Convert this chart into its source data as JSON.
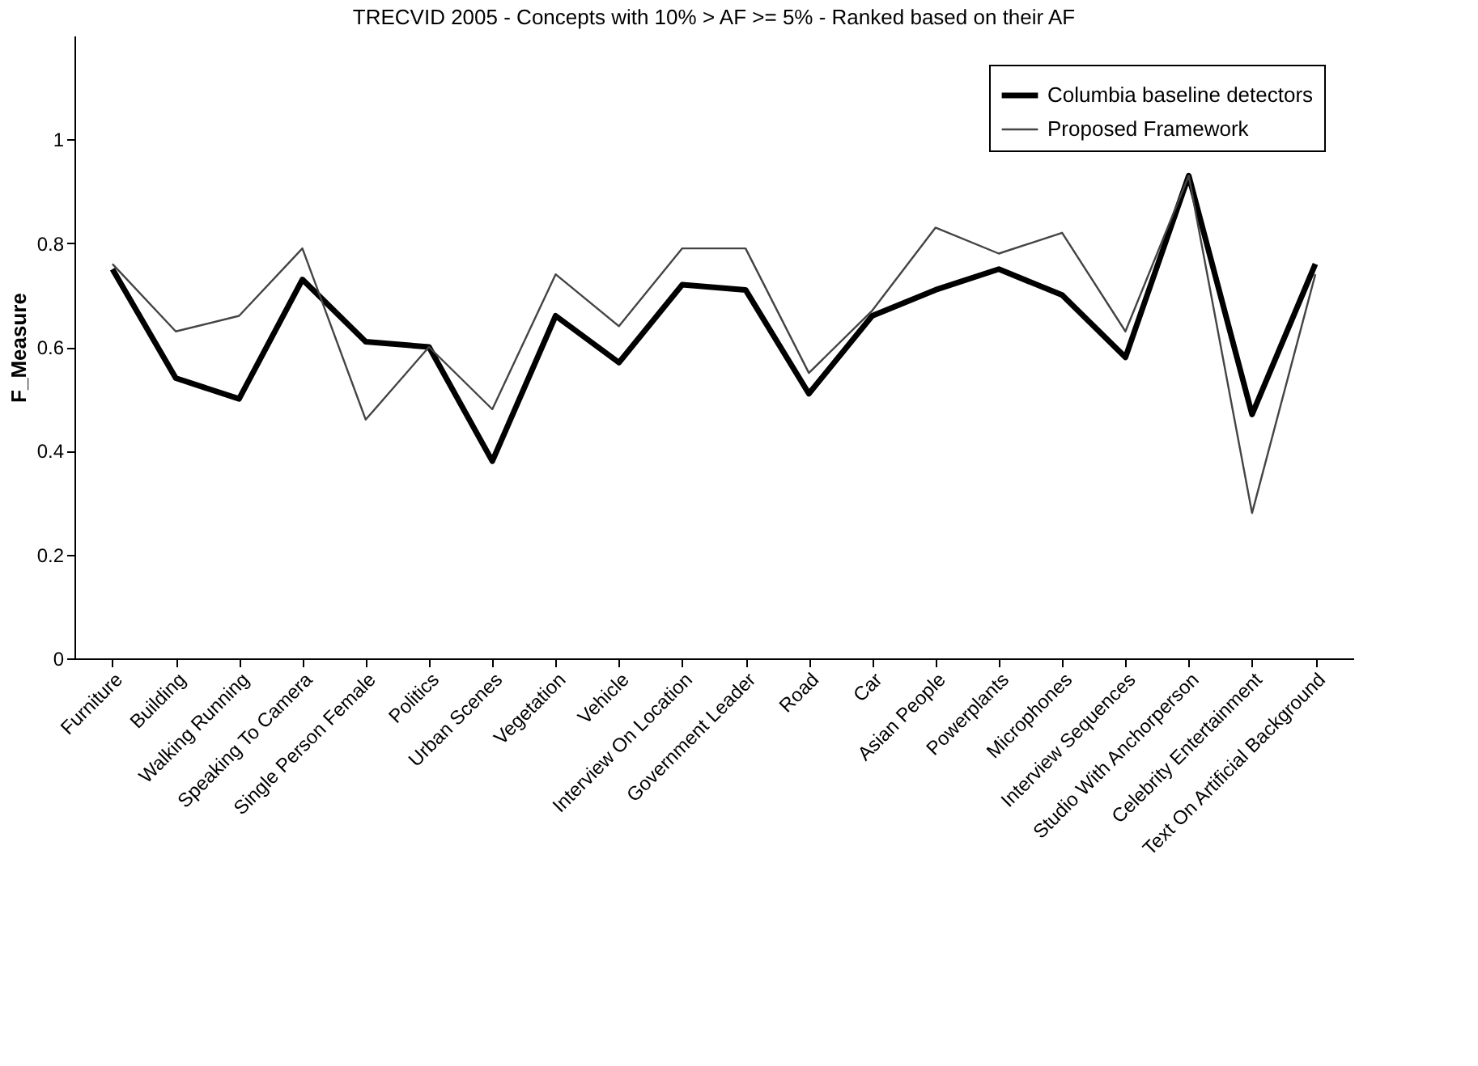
{
  "chart_data": {
    "type": "line",
    "title": "TRECVID 2005 - Concepts with 10% > AF >= 5% - Ranked based on their AF",
    "ylabel": "F_Measure",
    "categories": [
      "Furniture",
      "Building",
      "Walking Running",
      "Speaking To Camera",
      "Single Person Female",
      "Politics",
      "Urban Scenes",
      "Vegetation",
      "Vehicle",
      "Interview On Location",
      "Government Leader",
      "Road",
      "Car",
      "Asian People",
      "Powerplants",
      "Microphones",
      "Interview Sequences",
      "Studio With Anchorperson",
      "Celebrity Entertainment",
      "Text On Artificial Background"
    ],
    "series": [
      {
        "name": "Columbia baseline detectors",
        "color": "#000000",
        "values": [
          0.75,
          0.54,
          0.5,
          0.73,
          0.61,
          0.6,
          0.38,
          0.66,
          0.57,
          0.72,
          0.71,
          0.51,
          0.66,
          0.71,
          0.75,
          0.7,
          0.58,
          0.93,
          0.47,
          0.76
        ]
      },
      {
        "name": "Proposed Framework",
        "color": "#444444",
        "values": [
          0.76,
          0.63,
          0.66,
          0.79,
          0.46,
          0.6,
          0.48,
          0.74,
          0.64,
          0.79,
          0.79,
          0.55,
          0.67,
          0.83,
          0.78,
          0.82,
          0.63,
          0.93,
          0.28,
          0.74
        ]
      }
    ],
    "ylim": [
      0,
      1.2
    ],
    "yticks": [
      0,
      0.2,
      0.4,
      0.6,
      0.8,
      1
    ],
    "grid": false,
    "legend": "top right",
    "line_style": "solid"
  }
}
